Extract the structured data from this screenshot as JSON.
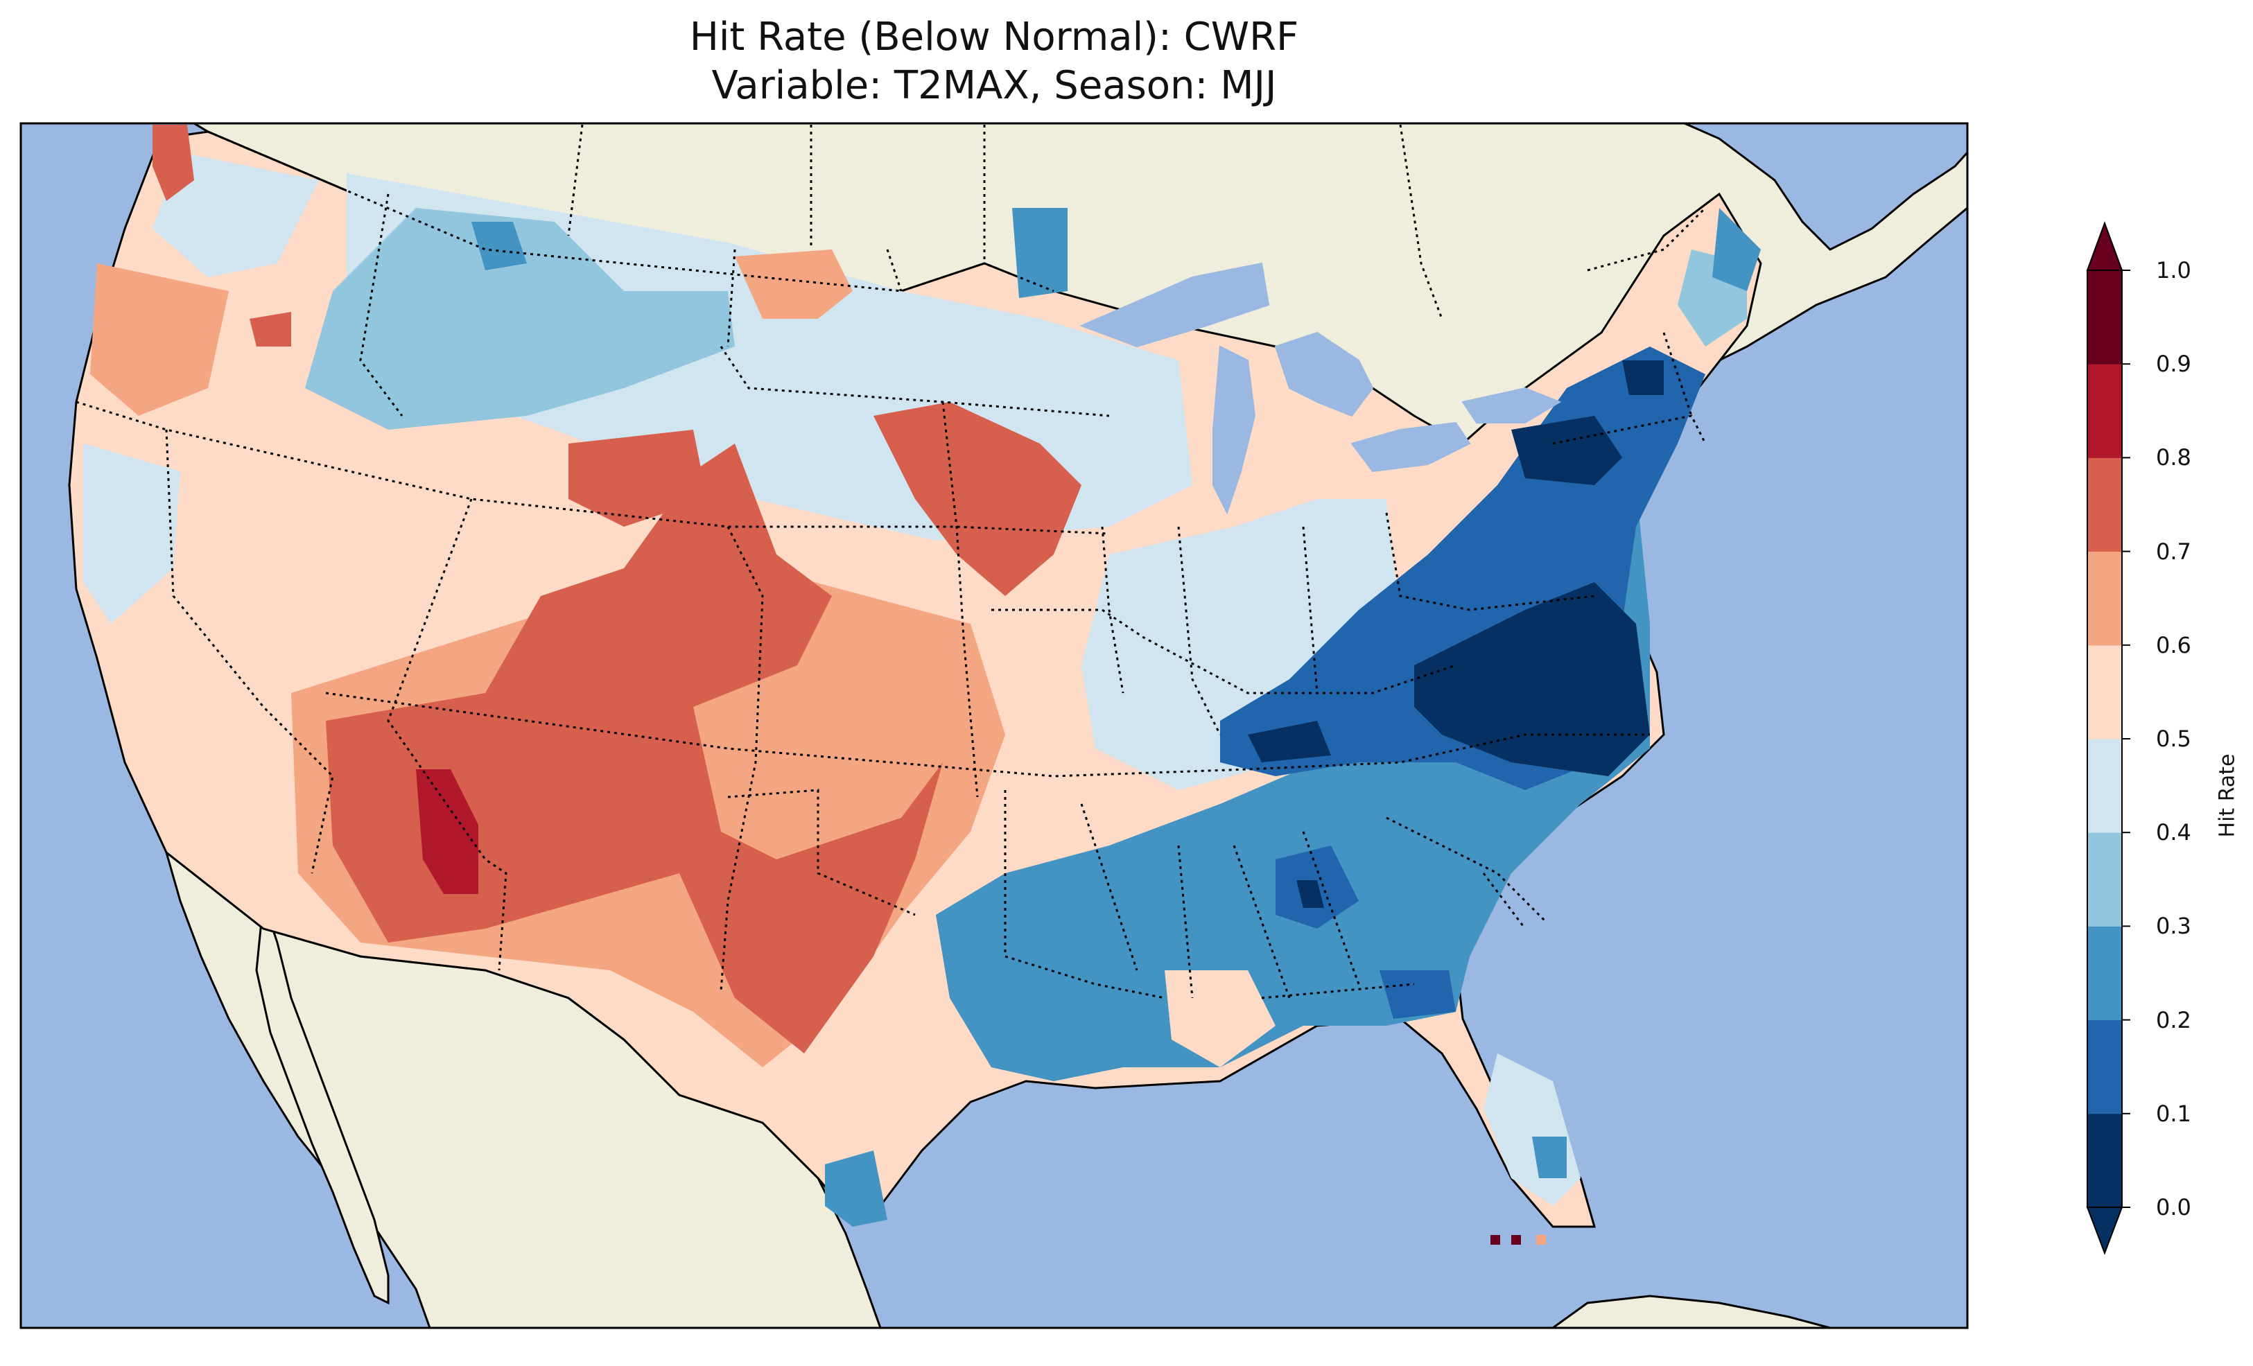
{
  "title": {
    "line1": "Hit Rate (Below Normal): CWRF",
    "line2": "Variable: T2MAX, Season: MJJ"
  },
  "colorbar": {
    "label": "Hit Rate",
    "ticks": [
      "0.0",
      "0.1",
      "0.2",
      "0.3",
      "0.4",
      "0.5",
      "0.6",
      "0.7",
      "0.8",
      "0.9",
      "1.0"
    ],
    "extend": "both",
    "colors": [
      "#053061",
      "#2166ac",
      "#4393c3",
      "#92c5de",
      "#d1e5f0",
      "#fddbc7",
      "#f4a582",
      "#d6604d",
      "#b2182b",
      "#67001f"
    ]
  },
  "map": {
    "ocean_color": "#9bb8e2",
    "land_color": "#efeedc",
    "variable": "T2MAX",
    "season": "MJJ",
    "model": "CWRF"
  }
}
